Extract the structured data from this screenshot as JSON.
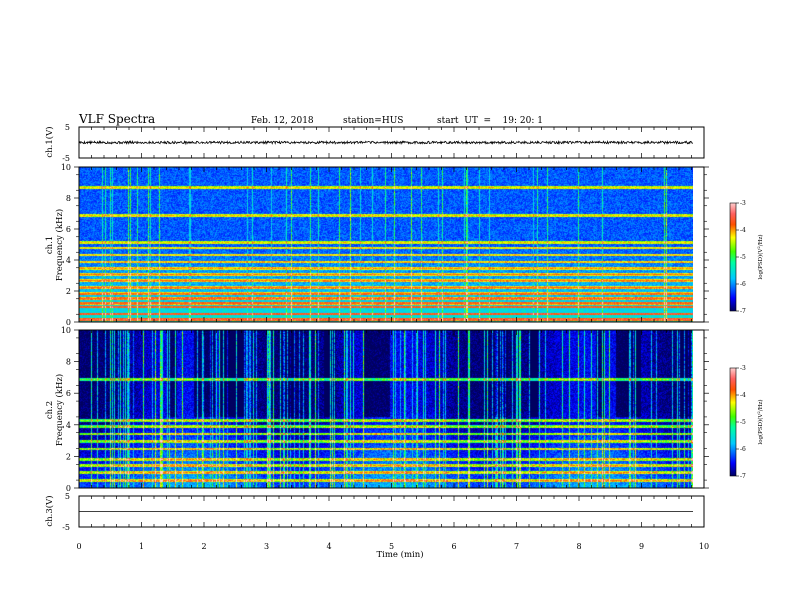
{
  "header": {
    "title": "VLF Spectra",
    "date": "Feb. 12, 2018",
    "station": "station=HUS",
    "start": "start  UT  =    19: 20: 1"
  },
  "chart_data": [
    {
      "type": "line",
      "panel": "ch1-waveform",
      "ylabel": "ch.1(V)",
      "ylim": [
        -5,
        5
      ],
      "yticks": [
        "5",
        "-5"
      ],
      "xlim": [
        0,
        10
      ],
      "series": [
        {
          "values_hint": "noisy trace centred near 0 V",
          "level": 0,
          "amplitude": 0.4
        }
      ]
    },
    {
      "type": "heatmap",
      "panel": "ch1-spectrogram",
      "ylabel": "ch.1\nFrequency (kHz)",
      "ylim": [
        0,
        10
      ],
      "yticks": [
        "0",
        "2",
        "4",
        "6",
        "8",
        "10"
      ],
      "xlim": [
        0,
        10
      ],
      "data_end_min": 9.83,
      "colorbar": {
        "label": "log(PSD)(V²/Hz)",
        "range": [
          -7,
          -3
        ],
        "ticks": [
          "-3",
          "-4",
          "-5",
          "-6",
          "-7"
        ]
      },
      "bands_khz": [
        0.2,
        0.55,
        1.0,
        1.25,
        1.55,
        1.85,
        2.25,
        2.7,
        3.1,
        3.5,
        3.9,
        4.35,
        4.8,
        5.15,
        6.9,
        8.7
      ],
      "seed": 11
    },
    {
      "type": "heatmap",
      "panel": "ch2-spectrogram",
      "ylabel": "ch.2\nFrequency (kHz)",
      "ylim": [
        0,
        10
      ],
      "yticks": [
        "0",
        "2",
        "4",
        "6",
        "8",
        "10"
      ],
      "xlim": [
        0,
        10
      ],
      "data_end_min": 9.83,
      "colorbar": {
        "label": "log(PSD)(V²/Hz)",
        "range": [
          -7,
          -3
        ],
        "ticks": [
          "-3",
          "-4",
          "-5",
          "-6",
          "-7"
        ]
      },
      "bands_khz": [
        0.5,
        1.0,
        1.45,
        1.85,
        2.5,
        3.0,
        3.45,
        3.9,
        4.3,
        6.9
      ],
      "seed": 23
    },
    {
      "type": "line",
      "panel": "ch3-waveform",
      "ylabel": "ch.3(V)",
      "xlabel": "Time  (min)",
      "ylim": [
        -5,
        5
      ],
      "yticks": [
        "5",
        "-5"
      ],
      "xlim": [
        0,
        10
      ],
      "xticks": [
        "0",
        "1",
        "2",
        "3",
        "4",
        "5",
        "6",
        "7",
        "8",
        "9",
        "10"
      ],
      "series": [
        {
          "values_hint": "flat line",
          "level": 0
        }
      ]
    }
  ]
}
